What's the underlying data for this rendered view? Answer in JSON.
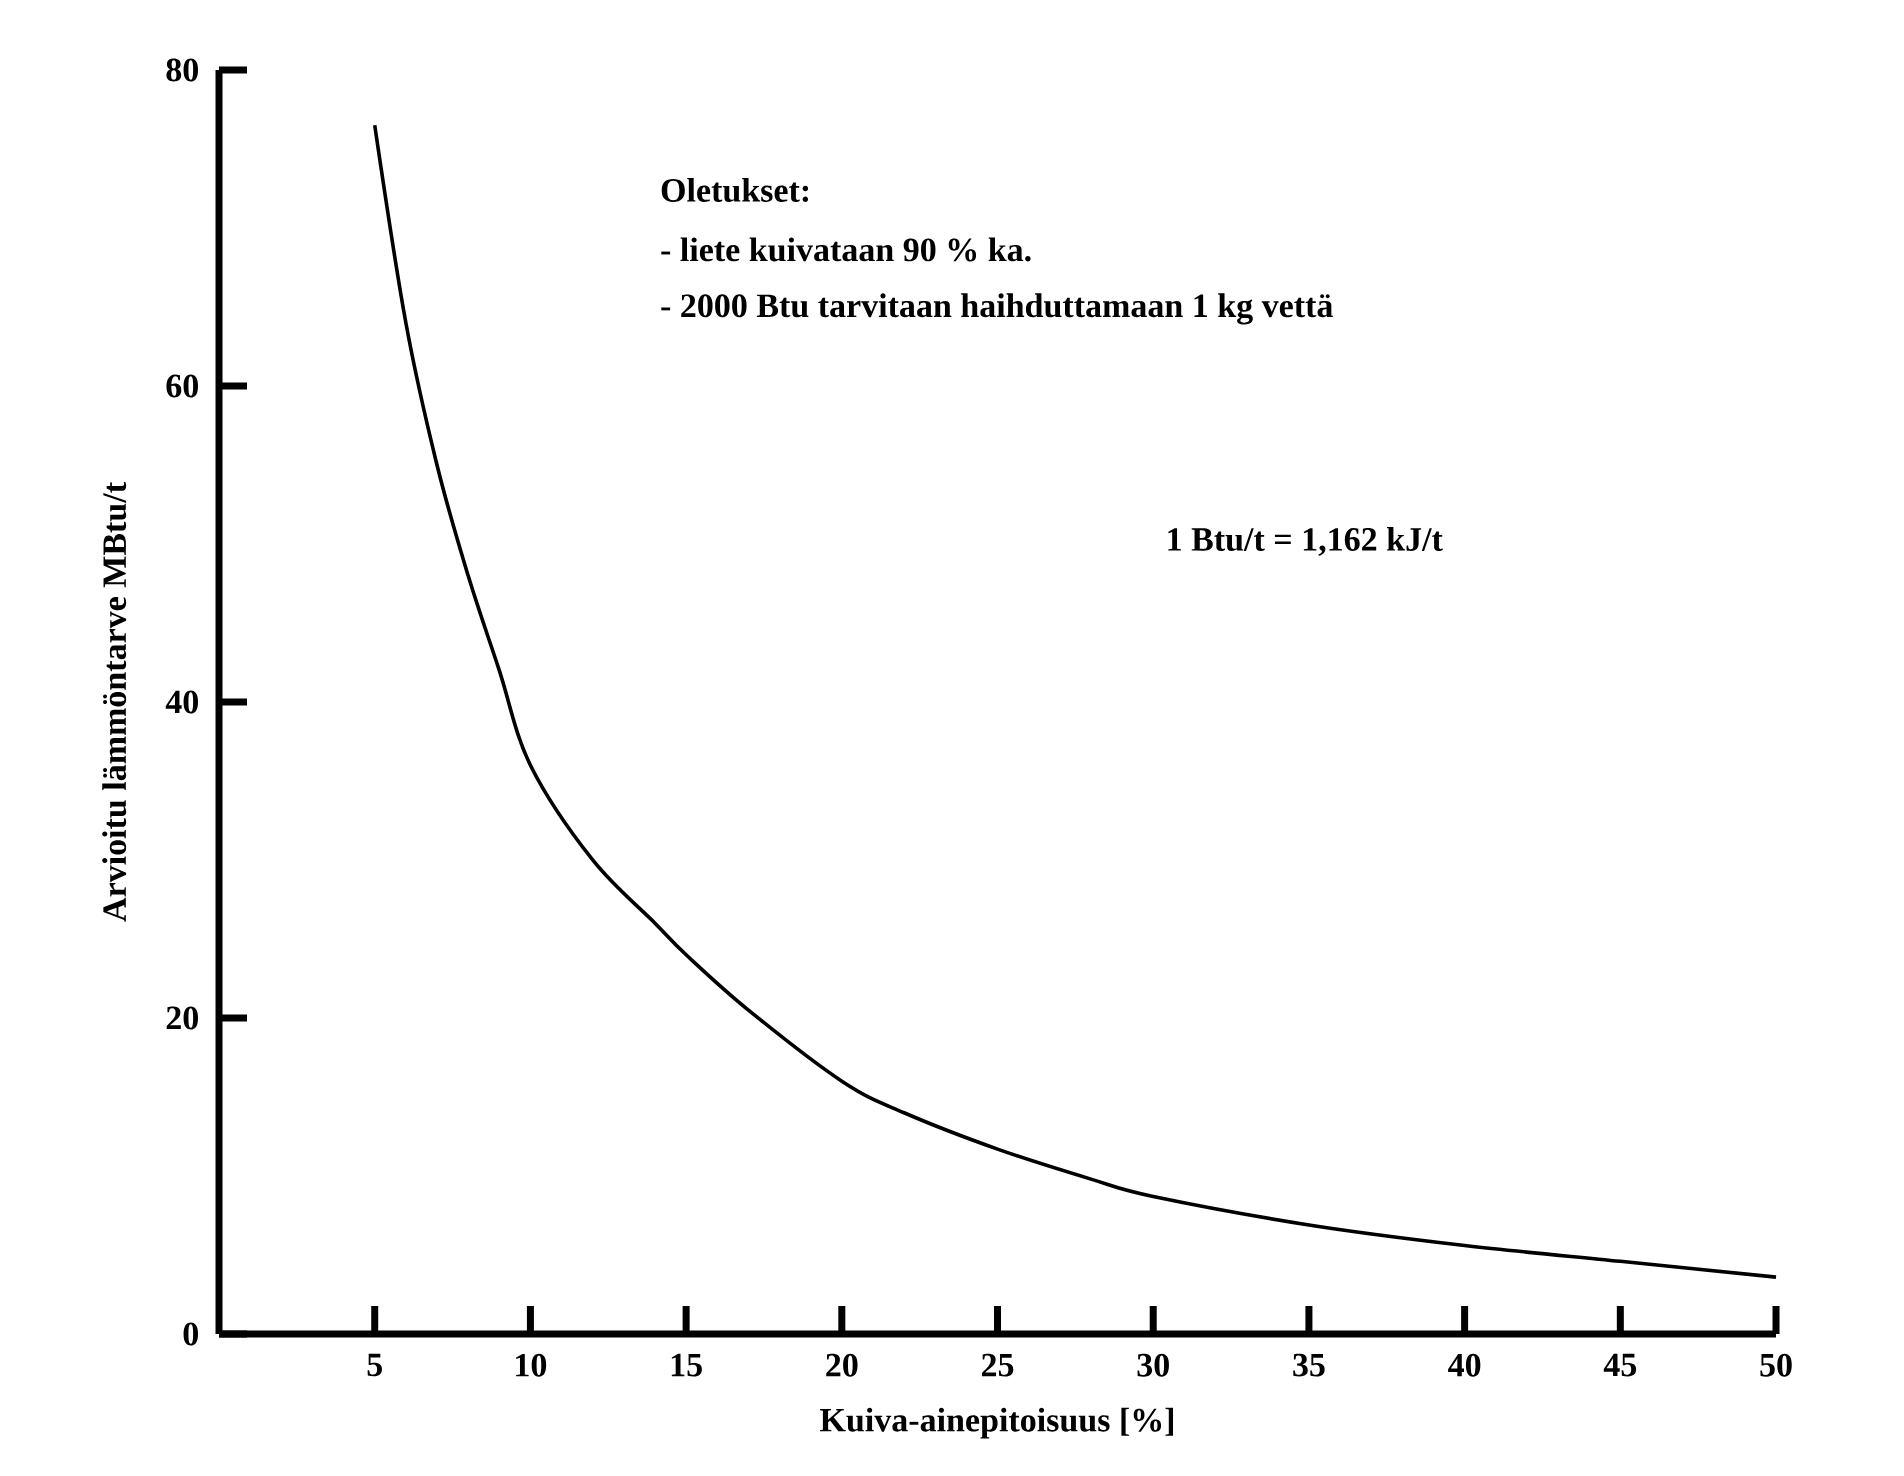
{
  "chart_data": {
    "type": "line",
    "xlabel": "Kuiva-ainepitoisuus [%]",
    "ylabel": "Arvioitu lämmöntarve MBtu/t",
    "annotations": [
      "Oletukset:",
      "- liete kuivataan 90 % ka.",
      "- 2000 Btu tarvitaan haihduttamaan 1 kg vettä",
      "1 Btu/t = 1,162 kJ/t"
    ],
    "x": [
      5,
      6,
      7,
      8,
      9,
      10,
      12,
      14,
      15,
      17,
      20,
      22,
      25,
      28,
      30,
      35,
      40,
      45,
      50
    ],
    "series": [
      {
        "color": "#000000",
        "values": [
          76.5,
          64,
          55,
          48,
          42,
          36,
          30,
          26,
          24,
          20.5,
          16,
          14,
          11.7,
          9.8,
          8.7,
          6.9,
          5.6,
          4.6,
          3.6
        ]
      }
    ],
    "xlim": [
      0,
      50
    ],
    "xticks": [
      5,
      10,
      15,
      20,
      25,
      30,
      35,
      40,
      45,
      50
    ],
    "ylim": [
      0,
      80
    ],
    "yticks": [
      0,
      20,
      40,
      60,
      80
    ],
    "marker": "none",
    "line_style": "solid"
  }
}
